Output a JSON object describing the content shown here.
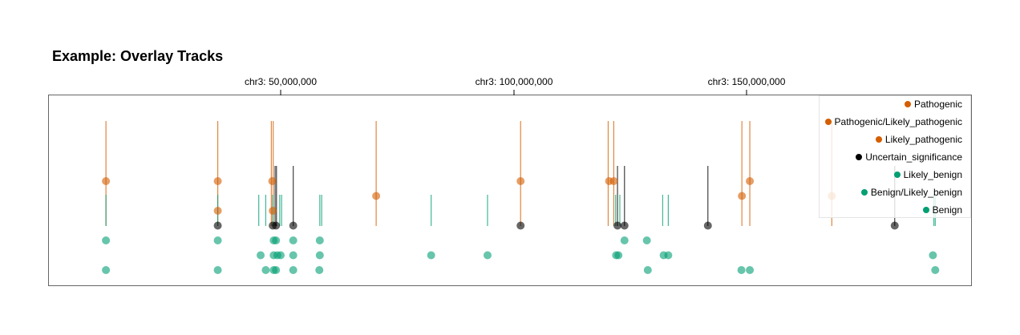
{
  "chart_data": {
    "type": "scatter",
    "title": "Example: Overlay Tracks",
    "x_axis": {
      "tick_values": [
        50000000,
        100000000,
        150000000
      ],
      "tick_labels": [
        "chr3: 50,000,000",
        "chr3: 100,000,000",
        "chr3: 150,000,000"
      ],
      "xlim": [
        0,
        198000000
      ]
    },
    "legend": {
      "position": "top-right",
      "entries": [
        {
          "label": "Pathogenic",
          "color": "#D45E00"
        },
        {
          "label": "Pathogenic/Likely_pathogenic",
          "color": "#D45E00"
        },
        {
          "label": "Likely_pathogenic",
          "color": "#D45E00"
        },
        {
          "label": "Uncertain_significance",
          "color": "#000000"
        },
        {
          "label": "Likely_benign",
          "color": "#029F73"
        },
        {
          "label": "Benign/Likely_benign",
          "color": "#029F73"
        },
        {
          "label": "Benign",
          "color": "#029F73"
        }
      ]
    },
    "series": [
      {
        "name": "Pathogenic",
        "level": 0,
        "color": "#D45E00",
        "x": [
          12500000,
          36500000,
          48200000,
          101500000,
          120500000,
          121500000,
          150700000
        ]
      },
      {
        "name": "Pathogenic/Likely_pathogenic",
        "level": 1,
        "color": "#D45E00",
        "x": [
          70500000,
          149000000,
          168300000
        ]
      },
      {
        "name": "Likely_pathogenic",
        "level": 2,
        "color": "#D45E00",
        "x": [
          36500000,
          48300000
        ]
      },
      {
        "name": "Uncertain_significance",
        "level": 3,
        "color": "#000000",
        "x": [
          36500000,
          48300000,
          49000000,
          52700000,
          101500000,
          122300000,
          123800000,
          141700000,
          181800000
        ]
      },
      {
        "name": "Likely_benign",
        "level": 4,
        "color": "#029F73",
        "x": [
          12500000,
          36500000,
          48500000,
          49000000,
          52700000,
          58400000,
          123800000,
          128600000
        ]
      },
      {
        "name": "Benign/Likely_benign",
        "level": 5,
        "color": "#029F73",
        "x": [
          45700000,
          48500000,
          49300000,
          50000000,
          52700000,
          58400000,
          82300000,
          94400000,
          122000000,
          122500000,
          132200000,
          133200000,
          190000000
        ]
      },
      {
        "name": "Benign",
        "level": 6,
        "color": "#029F73",
        "x": [
          12500000,
          36500000,
          46800000,
          48500000,
          49000000,
          52700000,
          58300000,
          128800000,
          148900000,
          150700000,
          190500000
        ]
      }
    ],
    "stems": {
      "orange": [
        12500000,
        36500000,
        48000000,
        48400000,
        70500000,
        101500000,
        120300000,
        121500000,
        149000000,
        150700000,
        168300000
      ],
      "black": [
        48800000,
        49100000,
        52700000,
        122300000,
        123800000,
        141700000,
        181800000
      ],
      "green": [
        12500000,
        36500000,
        45300000,
        46800000,
        48300000,
        49800000,
        50200000,
        58400000,
        58800000,
        82300000,
        94400000,
        121900000,
        122800000,
        132000000,
        133200000,
        190200000,
        190500000
      ]
    }
  }
}
